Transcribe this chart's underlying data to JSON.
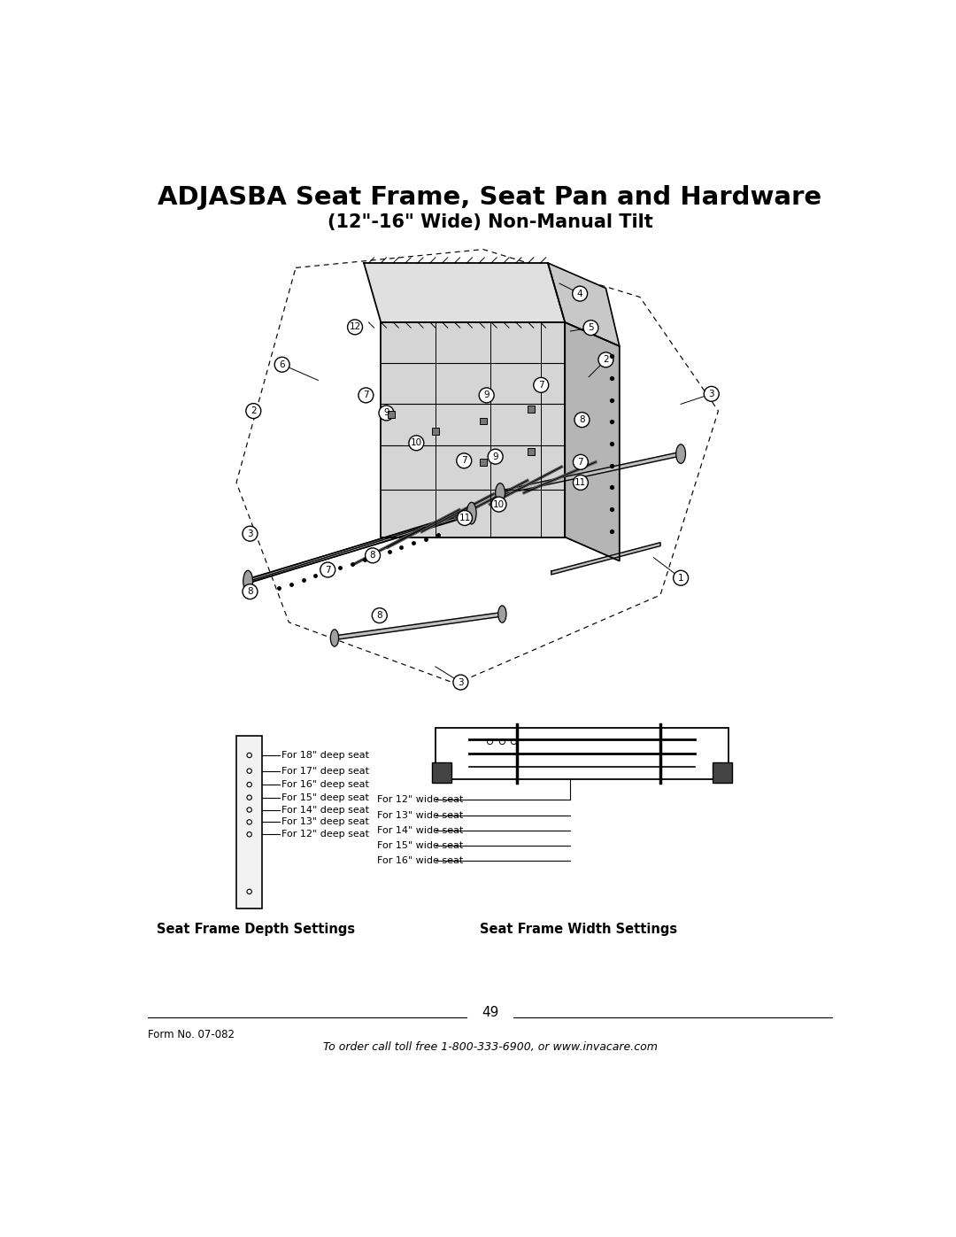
{
  "title_line1": "ADJASBA Seat Frame, Seat Pan and Hardware",
  "title_line2": "(12\"-16\" Wide) Non-Manual Tilt",
  "page_number": "49",
  "form_number": "Form No. 07-082",
  "footer_text": "To order call toll free 1-800-333-6900, or www.invacare.com",
  "depth_settings_label": "Seat Frame Depth Settings",
  "width_settings_label": "Seat Frame Width Settings",
  "depth_labels": [
    "For 18\" deep seat",
    "For 17\" deep seat",
    "For 16\" deep seat",
    "For 15\" deep seat",
    "For 14\" deep seat",
    "For 13\" deep seat",
    "For 12\" deep seat"
  ],
  "width_labels": [
    "For 12\" wide seat",
    "For 13\" wide seat",
    "For 14\" wide seat",
    "For 15\" wide seat",
    "For 16\" wide seat"
  ],
  "bg_color": "#ffffff",
  "text_color": "#000000"
}
